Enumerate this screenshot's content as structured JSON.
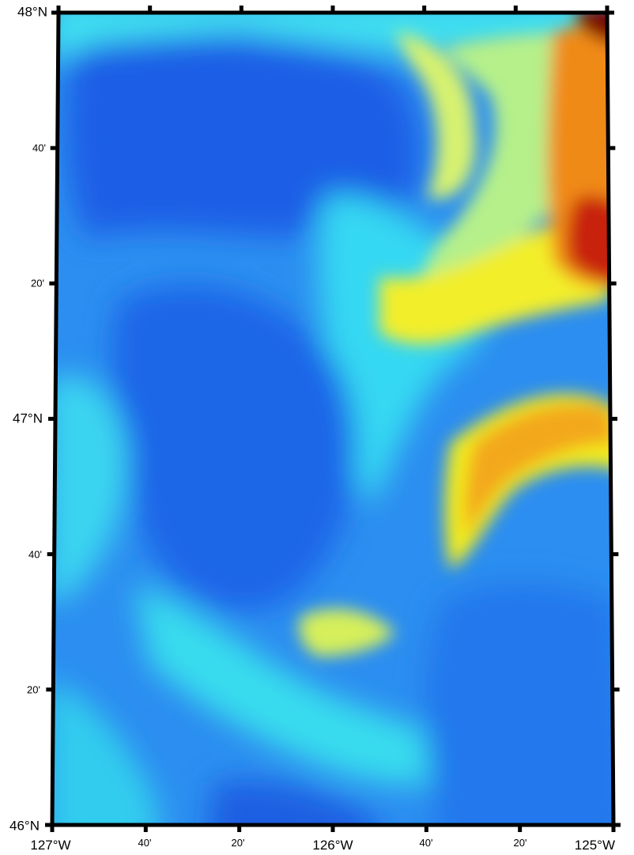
{
  "map": {
    "projection": "trapezoid",
    "colormap": [
      "#0a2fd8",
      "#1a63e8",
      "#2c8ef0",
      "#1fd5f6",
      "#62f0d6",
      "#c9f27a",
      "#f5f21f",
      "#f7b11c",
      "#ef5a12",
      "#c41a0c",
      "#7a0606"
    ]
  },
  "axes": {
    "left": [
      {
        "text": "48°N"
      },
      {
        "text": "40'"
      },
      {
        "text": "20'"
      },
      {
        "text": "47°N"
      },
      {
        "text": "40'"
      },
      {
        "text": "20'"
      },
      {
        "text": "46°N"
      }
    ],
    "bottom": [
      {
        "text": "127°W"
      },
      {
        "text": "40'"
      },
      {
        "text": "20'"
      },
      {
        "text": "126°W"
      },
      {
        "text": "40'"
      },
      {
        "text": "20'"
      },
      {
        "text": "125°W"
      }
    ]
  }
}
